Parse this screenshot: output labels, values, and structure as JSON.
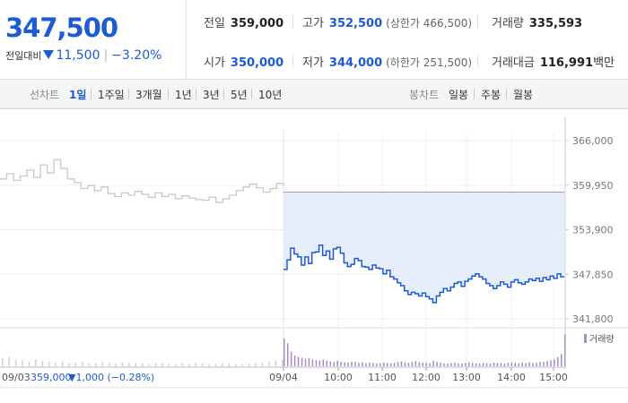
{
  "header": {
    "price": "347,500",
    "change_label": "전일대비",
    "change_amount": "11,500",
    "change_pct": "−3.20%"
  },
  "stats": {
    "prev_label": "전일",
    "prev_value": "359,000",
    "high_label": "고가",
    "high_value": "352,500",
    "upper_limit": "(상한가 466,500)",
    "volume_label": "거래량",
    "volume_value": "335,593",
    "open_label": "시가",
    "open_value": "350,000",
    "low_label": "저가",
    "low_value": "344,000",
    "lower_limit": "(하한가 251,500)",
    "amount_label": "거래대금",
    "amount_value": "116,991",
    "amount_unit": "백만"
  },
  "toolbar": {
    "line_label": "선차트",
    "line_periods": [
      "1일",
      "1주일",
      "3개월",
      "1년",
      "3년",
      "5년",
      "10년"
    ],
    "active_period": "1일",
    "candle_label": "봉차트",
    "candle_periods": [
      "일봉",
      "주봉",
      "월봉"
    ]
  },
  "colors": {
    "accent": "#1d5bd6",
    "prev_day_line": "#c8c8c8",
    "fill": "#e6eefb",
    "volume": "#a78bc9"
  },
  "chart_data": {
    "type": "line",
    "ylim": [
      341800,
      366000
    ],
    "y_ticks": [
      366000,
      359950,
      353900,
      347850,
      341800
    ],
    "y_tick_labels": [
      "366,000",
      "359,950",
      "353,900",
      "347,850",
      "341,800"
    ],
    "x_tick_labels": [
      "09/04",
      "10:00",
      "11:00",
      "12:00",
      "13:00",
      "14:00",
      "15:00"
    ],
    "volume_legend": "거래량",
    "previous_day": {
      "date": "09/03",
      "close_text": "359,000",
      "change_text": "▼1,000 (−0.28%)",
      "values": [
        360800,
        361500,
        360600,
        361200,
        362000,
        361000,
        362700,
        361600,
        363400,
        362200,
        360800,
        360300,
        359500,
        359900,
        359200,
        359700,
        358800,
        358400,
        358900,
        358600,
        359100,
        358700,
        358300,
        358900,
        358400,
        358700,
        358100,
        358500,
        358200,
        358000,
        357900,
        358300,
        357600,
        358100,
        358600,
        359200,
        359700,
        360100,
        359600,
        359000,
        359500,
        360200,
        359800
      ]
    },
    "series": [
      {
        "date": "09/04",
        "reference_close": 359000,
        "values": [
          348500,
          349800,
          351400,
          350600,
          350200,
          349100,
          350200,
          349300,
          350800,
          350900,
          351800,
          350400,
          351000,
          349900,
          351300,
          351500,
          350700,
          349400,
          348900,
          349200,
          350000,
          349700,
          348900,
          348800,
          348500,
          349100,
          348700,
          348600,
          347900,
          348400,
          347500,
          347200,
          346700,
          346300,
          345600,
          345100,
          345400,
          345200,
          344900,
          345300,
          344800,
          344500,
          344000,
          344900,
          345400,
          345900,
          345600,
          346100,
          346600,
          346800,
          346200,
          346900,
          347200,
          347600,
          347900,
          347500,
          347200,
          346600,
          346300,
          345900,
          346300,
          346800,
          346500,
          346100,
          346800,
          347100,
          346700,
          346500,
          346800,
          347200,
          347000,
          347300,
          346900,
          347400,
          347100,
          347600,
          347300,
          347900,
          347500,
          347500
        ]
      }
    ],
    "volume_prev": [
      50,
      60,
      42,
      38,
      30,
      45,
      35,
      28,
      25,
      32,
      20,
      24,
      28,
      18,
      22,
      26,
      20,
      16,
      24,
      19,
      22,
      18,
      15,
      20,
      22,
      17,
      14,
      19,
      16,
      21,
      18,
      15,
      13,
      17,
      20,
      16,
      14,
      18,
      22,
      25,
      30,
      38,
      45
    ],
    "volume_today": [
      180,
      150,
      95,
      70,
      62,
      55,
      48,
      52,
      44,
      40,
      38,
      45,
      35,
      32,
      28,
      36,
      30,
      26,
      24,
      30,
      28,
      22,
      26,
      20,
      24,
      22,
      18,
      20,
      25,
      22,
      19,
      23,
      28,
      32,
      26,
      22,
      30,
      34,
      28,
      24,
      22,
      20,
      36,
      28,
      24,
      20,
      18,
      22,
      24,
      20,
      18,
      22,
      26,
      22,
      20,
      18,
      22,
      20,
      18,
      24,
      22,
      20,
      18,
      22,
      26,
      22,
      20,
      24,
      22,
      26,
      22,
      24,
      28,
      30,
      34,
      40,
      45,
      60,
      80,
      210
    ]
  }
}
